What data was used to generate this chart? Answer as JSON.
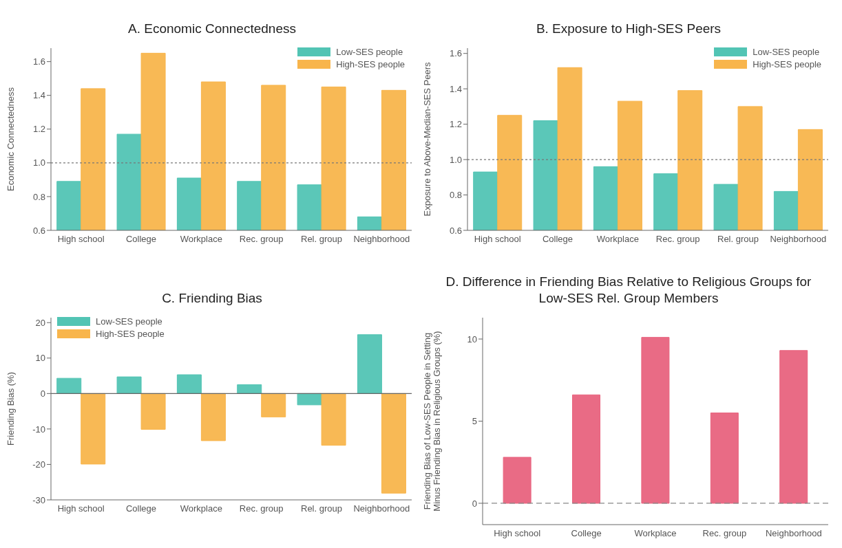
{
  "chart_data": [
    {
      "type": "bar",
      "title": "A. Economic Connectedness",
      "ylabel": "Economic Connectedness",
      "categories": [
        "High school",
        "College",
        "Workplace",
        "Rec. group",
        "Rel. group",
        "Neighborhood"
      ],
      "series": [
        {
          "name": "Low-SES people",
          "color": "#52c4b4",
          "values": [
            0.89,
            1.17,
            0.91,
            0.89,
            0.87,
            0.68
          ]
        },
        {
          "name": "High-SES people",
          "color": "#f8b54c",
          "values": [
            1.44,
            1.65,
            1.48,
            1.46,
            1.45,
            1.43
          ]
        }
      ],
      "ylim": [
        0.6,
        1.68
      ],
      "yticks": [
        0.6,
        0.8,
        {
          "value": 1,
          "label": "1.0"
        },
        1.2,
        1.4,
        1.6
      ],
      "ref_lines": [
        {
          "axis": "y",
          "value": 1,
          "line_style": "dotted",
          "color": "#777777"
        }
      ],
      "legend": "top right",
      "grid": false
    },
    {
      "type": "bar",
      "title": "B. Exposure to High-SES Peers",
      "ylabel": "Exposure to Above-Median-SES Peers",
      "categories": [
        "High school",
        "College",
        "Workplace",
        "Rec. group",
        "Rel. group",
        "Neighborhood"
      ],
      "series": [
        {
          "name": "Low-SES people",
          "color": "#52c4b4",
          "values": [
            0.93,
            1.22,
            0.96,
            0.92,
            0.86,
            0.82
          ]
        },
        {
          "name": "High-SES people",
          "color": "#f8b54c",
          "values": [
            1.25,
            1.52,
            1.33,
            1.39,
            1.3,
            1.17
          ]
        }
      ],
      "ylim": [
        0.6,
        1.63
      ],
      "yticks": [
        0.6,
        0.8,
        {
          "value": 1,
          "label": "1.0"
        },
        1.2,
        1.4,
        1.6
      ],
      "ref_lines": [
        {
          "axis": "y",
          "value": 1,
          "line_style": "dotted",
          "color": "#777777"
        }
      ],
      "legend": "top right",
      "grid": false
    },
    {
      "type": "bar",
      "title": "C. Friending Bias",
      "ylabel": "Friending Bias (%)",
      "categories": [
        "High school",
        "College",
        "Workplace",
        "Rec. group",
        "Rel. group",
        "Neighborhood"
      ],
      "series": [
        {
          "name": "Low-SES people",
          "color": "#52c4b4",
          "values": [
            4.3,
            4.7,
            5.3,
            2.5,
            -3.2,
            16.6
          ]
        },
        {
          "name": "High-SES people",
          "color": "#f8b54c",
          "values": [
            -19.9,
            -10.1,
            -13.3,
            -6.6,
            -14.6,
            -28.1
          ]
        }
      ],
      "ylim": [
        -30,
        21.4
      ],
      "yticks": [
        -30,
        -20,
        -10,
        0,
        10,
        20
      ],
      "ref_lines": [
        {
          "axis": "y",
          "value": 0,
          "line_style": "solid",
          "color": "#666666"
        }
      ],
      "legend": "top left",
      "grid": false
    },
    {
      "type": "bar",
      "title": "D. Difference in Friending Bias Relative to Religious Groups for Low-SES Rel. Group Members",
      "ylabel": "Friending Bias of Low-SES People in Setting\nMinus Friending Bias in Religious Groups (%)",
      "categories": [
        "High school",
        "College",
        "Workplace",
        "Rec. group",
        "Neighborhood"
      ],
      "series": [
        {
          "color": "#e8637e",
          "values": [
            2.8,
            6.6,
            10.1,
            5.5,
            9.3
          ]
        }
      ],
      "ylim": [
        -1.3,
        11.3
      ],
      "yticks": [
        0,
        5,
        10
      ],
      "ref_lines": [
        {
          "axis": "y",
          "value": 0,
          "line_style": "dashed",
          "color": "#888888"
        }
      ],
      "grid": false
    }
  ]
}
